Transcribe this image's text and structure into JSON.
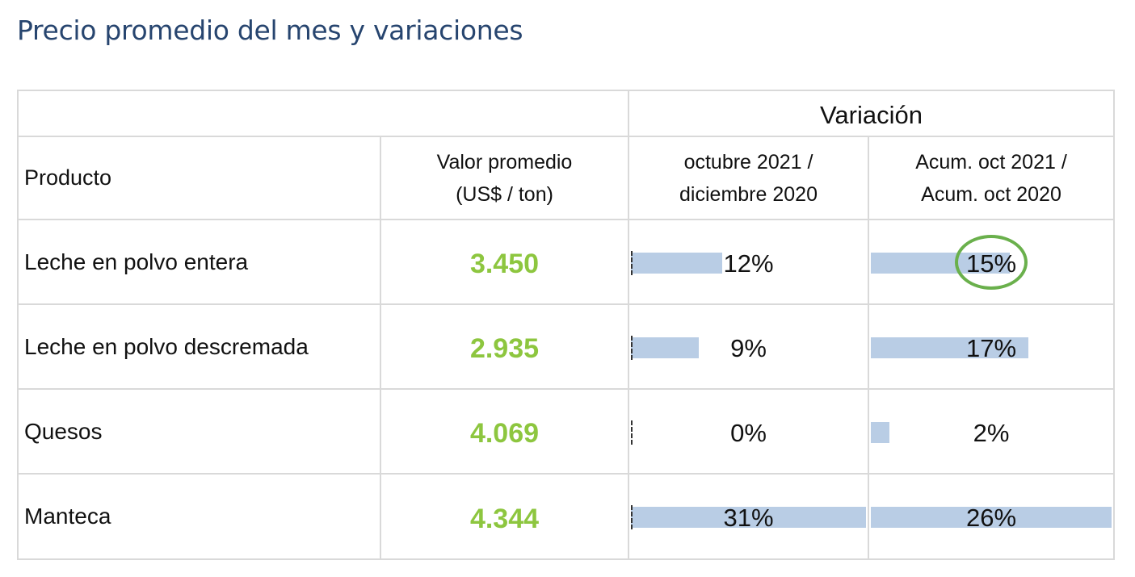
{
  "title": "Precio promedio del mes y variaciones",
  "table": {
    "variation_header": "Variación",
    "col_product": "Producto",
    "col_value_line1": "Valor promedio",
    "col_value_line2": "(US$ / ton)",
    "col_var1_line1": "octubre 2021 /",
    "col_var1_line2": "diciembre 2020",
    "col_var2_line1": "Acum. oct 2021 /",
    "col_var2_line2": "Acum. oct 2020",
    "rows": [
      {
        "product": "Leche en polvo entera",
        "value": "3.450",
        "var1": "12%",
        "var1_num": 12,
        "var2": "15%",
        "var2_num": 15,
        "var2_highlighted": true
      },
      {
        "product": "Leche en polvo descremada",
        "value": "2.935",
        "var1": "9%",
        "var1_num": 9,
        "var2": "17%",
        "var2_num": 17,
        "var2_highlighted": false
      },
      {
        "product": "Quesos",
        "value": "4.069",
        "var1": "0%",
        "var1_num": 0,
        "var2": "2%",
        "var2_num": 2,
        "var2_highlighted": false
      },
      {
        "product": "Manteca",
        "value": "4.344",
        "var1": "31%",
        "var1_num": 31,
        "var2": "26%",
        "var2_num": 26,
        "var2_highlighted": false
      }
    ],
    "colors": {
      "title": "#27456f",
      "value_text": "#8dc63f",
      "bar_fill": "#b9cde5",
      "highlight_ring": "#6ab04c",
      "grid": "#d9d9d9"
    }
  }
}
